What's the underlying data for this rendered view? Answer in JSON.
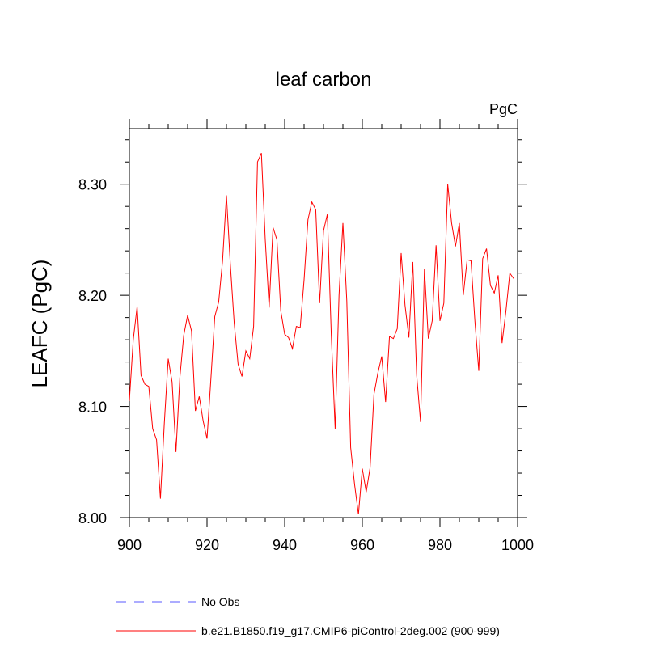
{
  "chart_data": {
    "type": "line",
    "title": "leaf carbon",
    "units_label": "PgC",
    "xlabel": "",
    "ylabel": "LEAFC  (PgC)",
    "xlim": [
      900,
      1000
    ],
    "ylim": [
      8.0,
      8.35
    ],
    "x_ticks": [
      900,
      920,
      940,
      960,
      980,
      1000
    ],
    "x_tick_labels": [
      "900",
      "920",
      "940",
      "960",
      "980",
      "1000"
    ],
    "y_ticks": [
      8.0,
      8.1,
      8.2,
      8.3
    ],
    "y_tick_labels": [
      "8.00",
      "8.10",
      "8.20",
      "8.30"
    ],
    "legend": [
      {
        "name": "No Obs",
        "color": "#5a5aff",
        "dash": true
      },
      {
        "name": "b.e21.B1850.f19_g17.CMIP6-piControl-2deg.002 (900-999)",
        "color": "#ff0000",
        "dash": false
      }
    ],
    "series": [
      {
        "name": "b.e21.B1850.f19_g17.CMIP6-piControl-2deg.002 (900-999)",
        "color": "#ff0000",
        "x": [
          900,
          901,
          902,
          903,
          904,
          905,
          906,
          907,
          908,
          909,
          910,
          911,
          912,
          913,
          914,
          915,
          916,
          917,
          918,
          919,
          920,
          921,
          922,
          923,
          924,
          925,
          926,
          927,
          928,
          929,
          930,
          931,
          932,
          933,
          934,
          935,
          936,
          937,
          938,
          939,
          940,
          941,
          942,
          943,
          944,
          945,
          946,
          947,
          948,
          949,
          950,
          951,
          952,
          953,
          954,
          955,
          956,
          957,
          958,
          959,
          960,
          961,
          962,
          963,
          964,
          965,
          966,
          967,
          968,
          969,
          970,
          971,
          972,
          973,
          974,
          975,
          976,
          977,
          978,
          979,
          980,
          981,
          982,
          983,
          984,
          985,
          986,
          987,
          988,
          989,
          990,
          991,
          992,
          993,
          994,
          995,
          996,
          997,
          998,
          999
        ],
        "values": [
          8.105,
          8.16,
          8.19,
          8.128,
          8.12,
          8.118,
          8.08,
          8.07,
          8.017,
          8.085,
          8.143,
          8.122,
          8.059,
          8.126,
          8.164,
          8.182,
          8.168,
          8.096,
          8.109,
          8.087,
          8.071,
          8.125,
          8.181,
          8.194,
          8.231,
          8.29,
          8.228,
          8.175,
          8.138,
          8.127,
          8.15,
          8.143,
          8.172,
          8.32,
          8.328,
          8.25,
          8.189,
          8.261,
          8.25,
          8.186,
          8.165,
          8.162,
          8.152,
          8.172,
          8.171,
          8.214,
          8.268,
          8.284,
          8.277,
          8.193,
          8.258,
          8.273,
          8.165,
          8.08,
          8.2,
          8.265,
          8.195,
          8.063,
          8.03,
          8.003,
          8.044,
          8.023,
          8.045,
          8.111,
          8.13,
          8.145,
          8.104,
          8.163,
          8.161,
          8.17,
          8.238,
          8.191,
          8.162,
          8.23,
          8.128,
          8.086,
          8.224,
          8.161,
          8.177,
          8.245,
          8.177,
          8.193,
          8.3,
          8.265,
          8.244,
          8.265,
          8.2,
          8.232,
          8.231,
          8.177,
          8.132,
          8.233,
          8.242,
          8.209,
          8.202,
          8.218,
          8.157,
          8.186,
          8.22,
          8.215
        ]
      }
    ]
  }
}
